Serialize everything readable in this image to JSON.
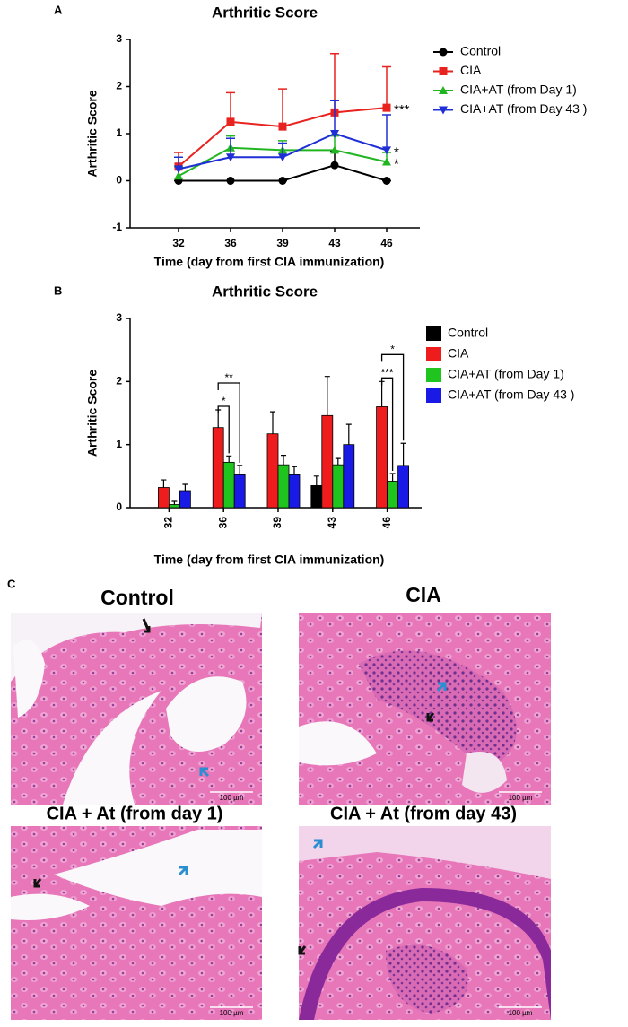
{
  "chart_data": [
    {
      "type": "line",
      "panel_label": "A",
      "title": "Arthritic Score",
      "ylabel": "Arthritic Score",
      "xlabel": "Time (day from first CIA immunization)",
      "categories": [
        "32",
        "36",
        "39",
        "43",
        "46"
      ],
      "ylim": [
        -1,
        3
      ],
      "yticks": [
        -1,
        0,
        1,
        2,
        3
      ],
      "series": [
        {
          "name": "Control",
          "color": "#000000",
          "marker": "circle",
          "values": [
            0,
            0,
            0,
            0.33,
            0
          ],
          "errors": [
            0,
            0,
            0,
            0.3,
            0
          ]
        },
        {
          "name": "CIA",
          "color": "#e8231f",
          "marker": "square",
          "values": [
            0.3,
            1.25,
            1.15,
            1.45,
            1.55
          ],
          "errors": [
            0.3,
            0.62,
            0.8,
            1.25,
            0.87
          ],
          "significance": "***"
        },
        {
          "name": "CIA+AT (from Day 1)",
          "color": "#22b522",
          "marker": "triangle-up",
          "values": [
            0.1,
            0.7,
            0.65,
            0.65,
            0.4
          ],
          "errors": [
            0.2,
            0.25,
            0.2,
            0.3,
            0.2
          ],
          "significance": "*"
        },
        {
          "name": "CIA+AT (from Day 43 )",
          "color": "#1f2fd6",
          "marker": "triangle-down",
          "values": [
            0.25,
            0.5,
            0.5,
            1.0,
            0.65
          ],
          "errors": [
            0.25,
            0.4,
            0.3,
            0.7,
            0.75
          ],
          "significance": "*"
        }
      ]
    },
    {
      "type": "bar",
      "panel_label": "B",
      "title": "Arthritic Score",
      "ylabel": "Arthritic Score",
      "xlabel": "Time (day from first CIA immunization)",
      "categories": [
        "32",
        "36",
        "39",
        "43",
        "46"
      ],
      "ylim": [
        0,
        3
      ],
      "yticks": [
        0,
        1,
        2,
        3
      ],
      "series": [
        {
          "name": "Control",
          "color": "#000000",
          "values": [
            0,
            0,
            0,
            0.35,
            0
          ],
          "errors": [
            0,
            0,
            0,
            0.15,
            0
          ]
        },
        {
          "name": "CIA",
          "color": "#ee1c1c",
          "values": [
            0.32,
            1.27,
            1.17,
            1.46,
            1.6
          ],
          "errors": [
            0.12,
            0.28,
            0.35,
            0.62,
            0.4
          ]
        },
        {
          "name": "CIA+AT (from Day 1)",
          "color": "#1fc41f",
          "values": [
            0.05,
            0.72,
            0.68,
            0.68,
            0.42
          ],
          "errors": [
            0.05,
            0.1,
            0.15,
            0.1,
            0.12
          ],
          "brackets": [
            null,
            "*",
            null,
            null,
            "***"
          ]
        },
        {
          "name": "CIA+AT (from Day 43 )",
          "color": "#1a1ae6",
          "values": [
            0.27,
            0.52,
            0.52,
            1.0,
            0.67
          ],
          "errors": [
            0.1,
            0.15,
            0.13,
            0.32,
            0.35
          ],
          "brackets": [
            null,
            "**",
            null,
            null,
            "*"
          ]
        }
      ]
    }
  ],
  "panel_c": {
    "panel_label": "C",
    "images": [
      {
        "title": "Control",
        "scale_bar": "100 µm"
      },
      {
        "title": "CIA",
        "scale_bar": "100 µm"
      },
      {
        "title": "CIA + At (from day 1)",
        "scale_bar": "100 µm"
      },
      {
        "title": "CIA + At (from day 43)",
        "scale_bar": "100 µm"
      }
    ]
  }
}
